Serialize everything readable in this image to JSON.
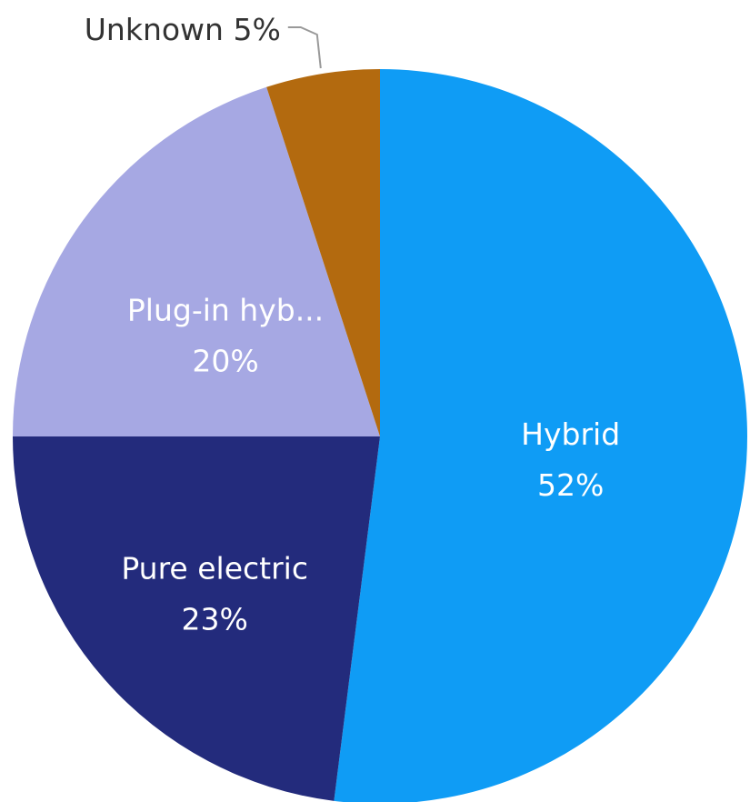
{
  "chart_data": {
    "type": "pie",
    "slices": [
      {
        "label": "Hybrid",
        "value": 52,
        "display": "52%",
        "color": "#0f9cf5"
      },
      {
        "label": "Pure electric",
        "value": 23,
        "display": "23%",
        "color": "#232b7c"
      },
      {
        "label": "Plug-in hyb...",
        "value": 20,
        "display": "20%",
        "color": "#a6a8e3"
      },
      {
        "label": "Unknown",
        "value": 5,
        "display": "5%",
        "color": "#b36a0f"
      }
    ],
    "outside_label_color": "#333333",
    "inside_label_color": "#e8efff"
  }
}
